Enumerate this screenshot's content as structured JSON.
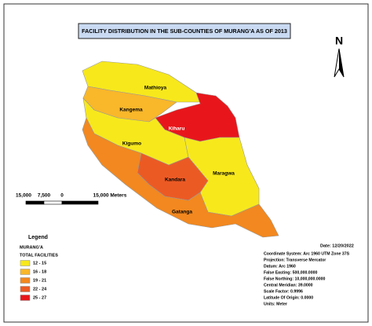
{
  "title": "FACILITY DISTRIBUTION IN THE SUB-COUNTIES OF MURANG'A  AS OF 2013",
  "north": "N",
  "regions": [
    {
      "name": "Mathioya",
      "color": "#f7e81c"
    },
    {
      "name": "Kangema",
      "color": "#f9b72a"
    },
    {
      "name": "Kiharu",
      "color": "#e8161b"
    },
    {
      "name": "Kigumo",
      "color": "#f7e81c"
    },
    {
      "name": "Maragwa",
      "color": "#f7e81c"
    },
    {
      "name": "Kandara",
      "color": "#ec5a24"
    },
    {
      "name": "Gatanga",
      "color": "#f2881f"
    }
  ],
  "scale_bar": {
    "labels": [
      "15,000",
      "7,500",
      "0",
      "15,000 Meters"
    ]
  },
  "legend": {
    "title": "Legend",
    "layer": "MURANG'A",
    "field": "TOTAL FACILITIES",
    "classes": [
      {
        "label": "12 - 15",
        "color": "#f7e81c"
      },
      {
        "label": "16 - 18",
        "color": "#f9b72a"
      },
      {
        "label": "19 - 21",
        "color": "#f2881f"
      },
      {
        "label": "22 - 24",
        "color": "#ec5a24"
      },
      {
        "label": "25 - 27",
        "color": "#e8161b"
      }
    ]
  },
  "info": {
    "date": "Date: 12/20/2022",
    "lines": [
      "Coordinate System: Arc 1960 UTM Zone 37S",
      "Projection: Transverse Mercator",
      "Datum: Arc 1960",
      "False Easting: 500,000.0000",
      "False Northing: 10,000,000.0000",
      "Central Meridian: 39.0000",
      "Scale Factor: 0.9996",
      "Latitude Of Origin: 0.0000",
      "Units: Meter"
    ]
  }
}
